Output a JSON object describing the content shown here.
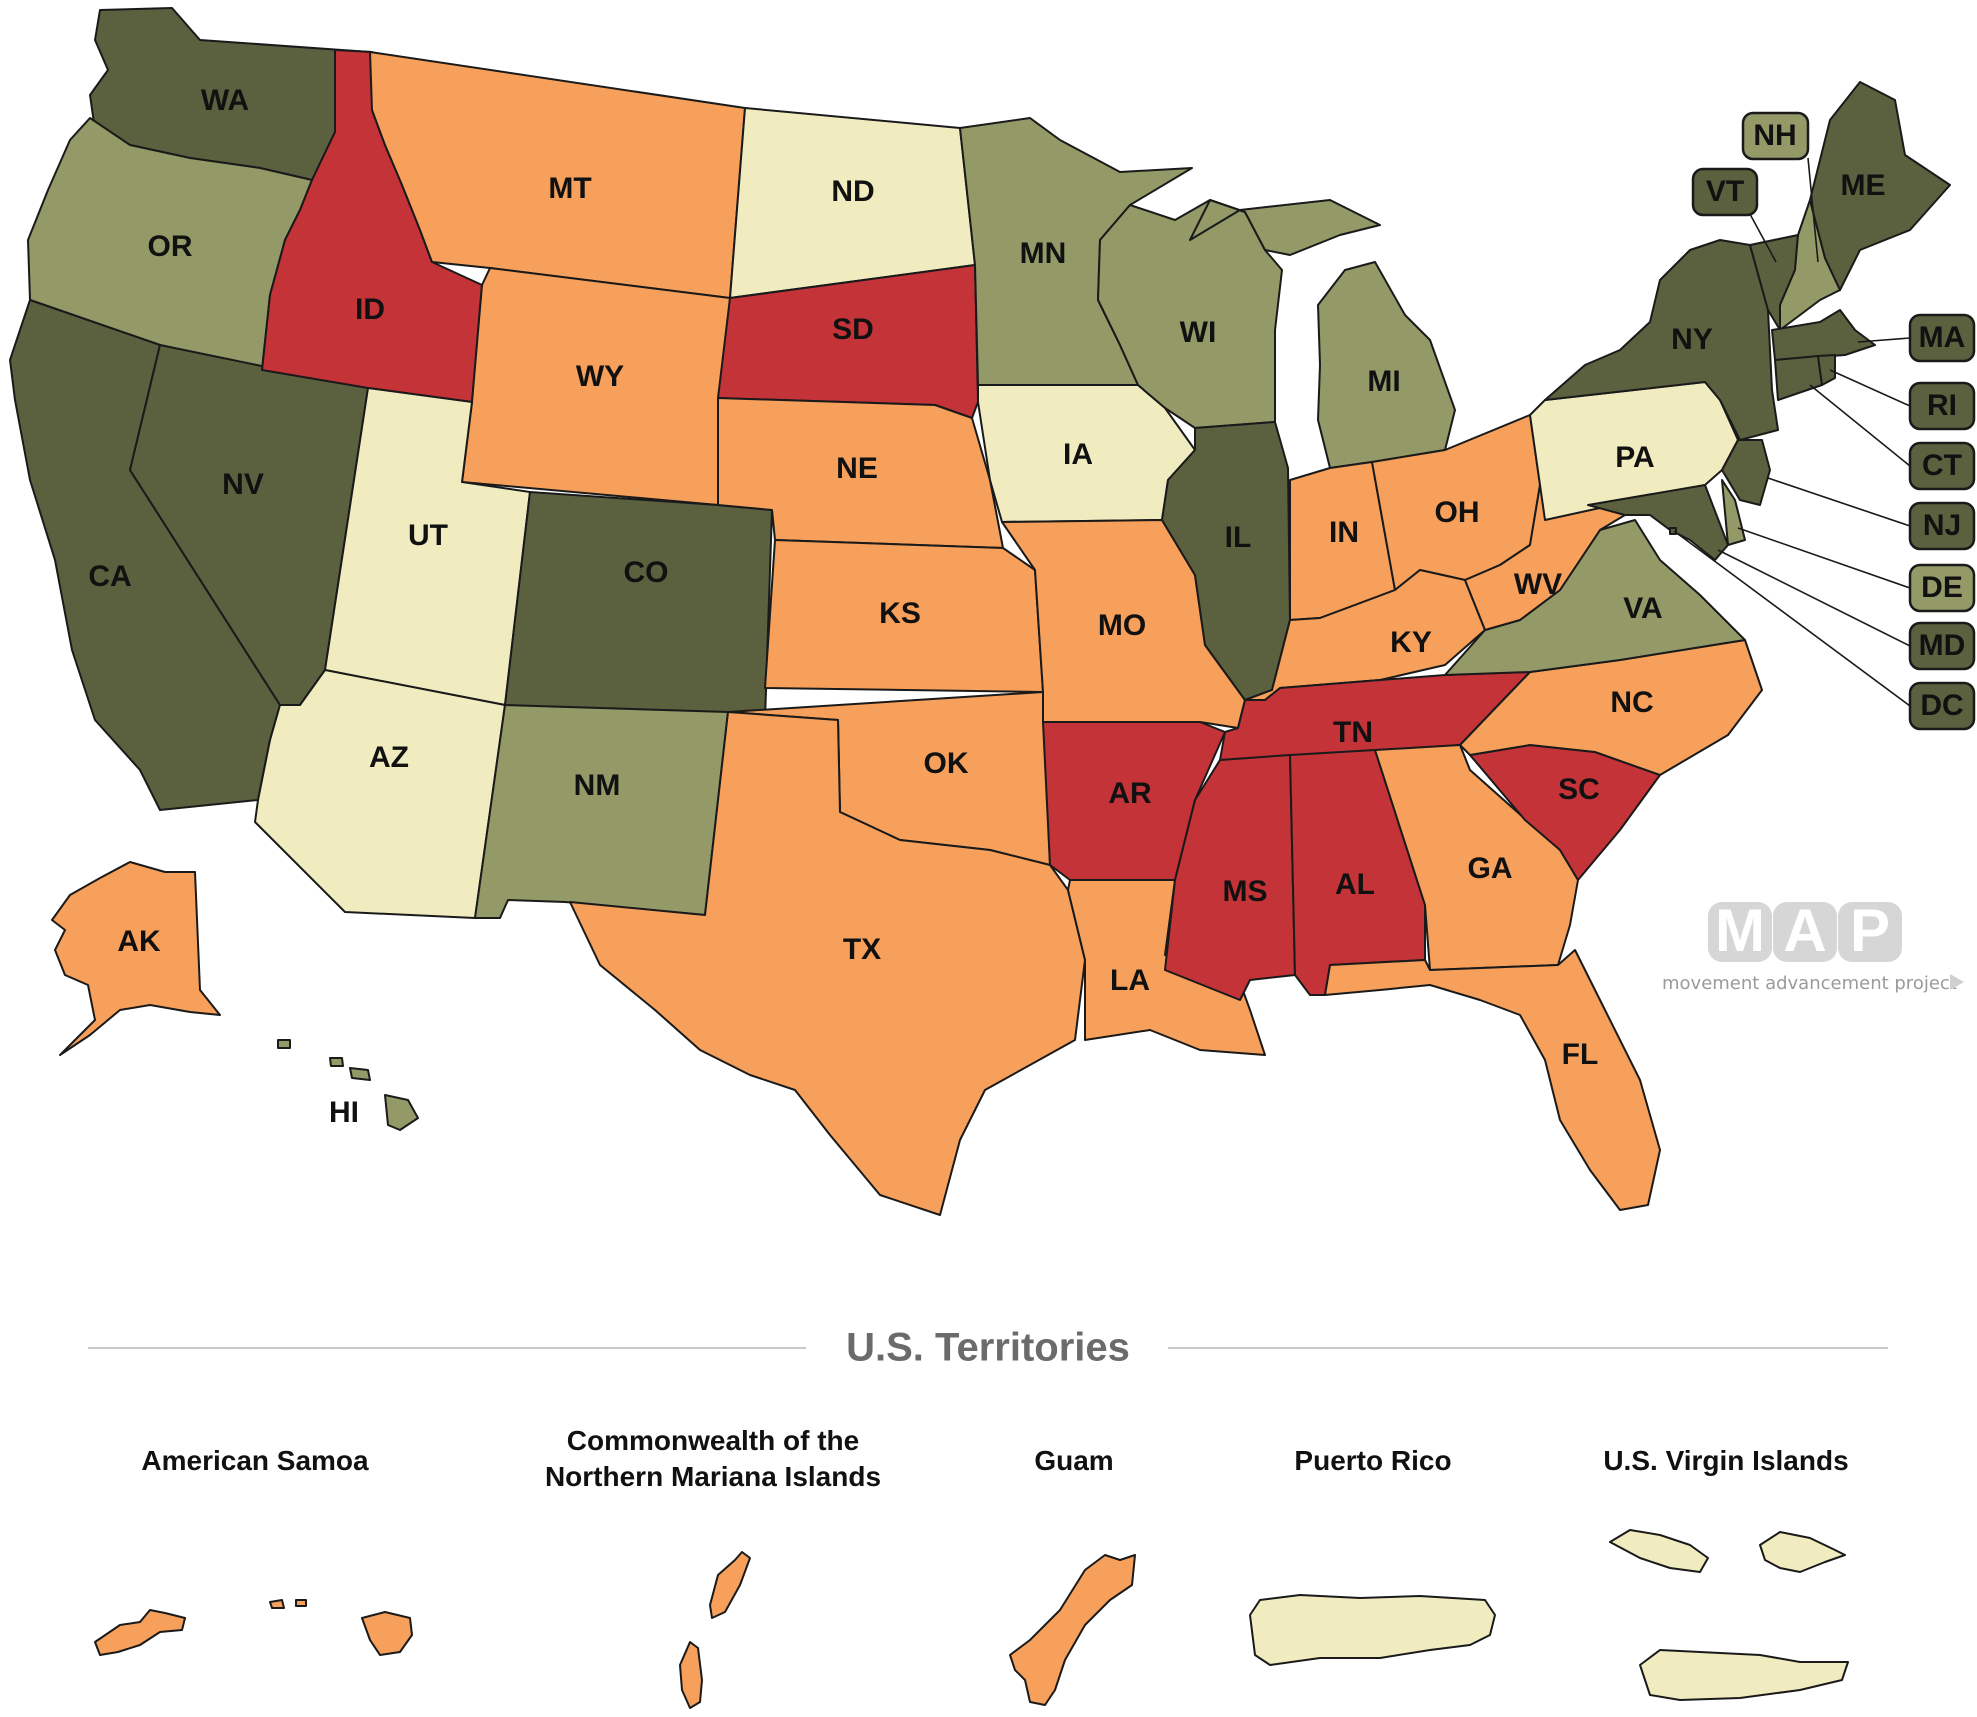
{
  "palette": {
    "dark_green": "#5b603e",
    "light_green": "#939967",
    "cream": "#f1ecc0",
    "orange": "#f6a05b",
    "red": "#c33338"
  },
  "states": {
    "WA": {
      "label": "WA",
      "category": "dark_green"
    },
    "OR": {
      "label": "OR",
      "category": "light_green"
    },
    "CA": {
      "label": "CA",
      "category": "dark_green"
    },
    "NV": {
      "label": "NV",
      "category": "dark_green"
    },
    "ID": {
      "label": "ID",
      "category": "red"
    },
    "MT": {
      "label": "MT",
      "category": "orange"
    },
    "WY": {
      "label": "WY",
      "category": "orange"
    },
    "UT": {
      "label": "UT",
      "category": "cream"
    },
    "AZ": {
      "label": "AZ",
      "category": "cream"
    },
    "CO": {
      "label": "CO",
      "category": "dark_green"
    },
    "NM": {
      "label": "NM",
      "category": "light_green"
    },
    "ND": {
      "label": "ND",
      "category": "cream"
    },
    "SD": {
      "label": "SD",
      "category": "red"
    },
    "NE": {
      "label": "NE",
      "category": "orange"
    },
    "KS": {
      "label": "KS",
      "category": "orange"
    },
    "OK": {
      "label": "OK",
      "category": "orange"
    },
    "TX": {
      "label": "TX",
      "category": "orange"
    },
    "MN": {
      "label": "MN",
      "category": "light_green"
    },
    "IA": {
      "label": "IA",
      "category": "cream"
    },
    "MO": {
      "label": "MO",
      "category": "orange"
    },
    "AR": {
      "label": "AR",
      "category": "red"
    },
    "LA": {
      "label": "LA",
      "category": "orange"
    },
    "WI": {
      "label": "WI",
      "category": "light_green"
    },
    "IL": {
      "label": "IL",
      "category": "dark_green"
    },
    "MI": {
      "label": "MI",
      "category": "light_green"
    },
    "IN": {
      "label": "IN",
      "category": "orange"
    },
    "OH": {
      "label": "OH",
      "category": "orange"
    },
    "KY": {
      "label": "KY",
      "category": "orange"
    },
    "TN": {
      "label": "TN",
      "category": "red"
    },
    "MS": {
      "label": "MS",
      "category": "red"
    },
    "AL": {
      "label": "AL",
      "category": "red"
    },
    "GA": {
      "label": "GA",
      "category": "orange"
    },
    "FL": {
      "label": "FL",
      "category": "orange"
    },
    "SC": {
      "label": "SC",
      "category": "red"
    },
    "NC": {
      "label": "NC",
      "category": "orange"
    },
    "VA": {
      "label": "VA",
      "category": "light_green"
    },
    "WV": {
      "label": "WV",
      "category": "orange"
    },
    "PA": {
      "label": "PA",
      "category": "cream"
    },
    "NY": {
      "label": "NY",
      "category": "dark_green"
    },
    "ME": {
      "label": "ME",
      "category": "dark_green"
    },
    "AK": {
      "label": "AK",
      "category": "orange"
    },
    "HI": {
      "label": "HI",
      "category": "light_green"
    }
  },
  "small_states": {
    "NH": {
      "label": "NH",
      "category": "light_green"
    },
    "VT": {
      "label": "VT",
      "category": "dark_green"
    },
    "MA": {
      "label": "MA",
      "category": "dark_green"
    },
    "RI": {
      "label": "RI",
      "category": "dark_green"
    },
    "CT": {
      "label": "CT",
      "category": "dark_green"
    },
    "NJ": {
      "label": "NJ",
      "category": "dark_green"
    },
    "DE": {
      "label": "DE",
      "category": "light_green"
    },
    "MD": {
      "label": "MD",
      "category": "dark_green"
    },
    "DC": {
      "label": "DC",
      "category": "dark_green"
    }
  },
  "logo": {
    "letters": [
      "M",
      "A",
      "P"
    ],
    "tagline": "movement advancement project"
  },
  "territories": {
    "heading": "U.S. Territories",
    "items": [
      {
        "name_lines": [
          "American Samoa"
        ],
        "category": "orange"
      },
      {
        "name_lines": [
          "Commonwealth of the",
          "Northern Mariana Islands"
        ],
        "category": "orange"
      },
      {
        "name_lines": [
          "Guam"
        ],
        "category": "orange"
      },
      {
        "name_lines": [
          "Puerto Rico"
        ],
        "category": "cream"
      },
      {
        "name_lines": [
          "U.S. Virgin Islands"
        ],
        "category": "cream"
      }
    ]
  }
}
